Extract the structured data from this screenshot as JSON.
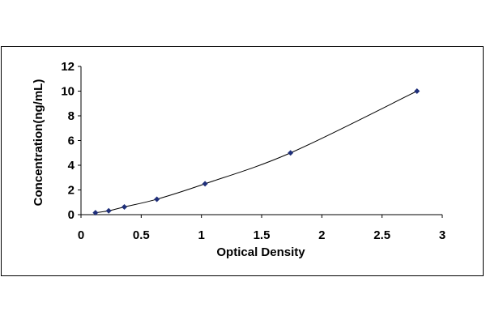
{
  "chart_data": {
    "type": "scatter",
    "title": "",
    "xlabel": "Optical Density",
    "ylabel": "Concentration(ng/mL)",
    "xlim": [
      0,
      3
    ],
    "ylim": [
      0,
      12
    ],
    "xticks": [
      0,
      0.5,
      1,
      1.5,
      2,
      2.5,
      3
    ],
    "xtick_labels": [
      "0",
      "0.5",
      "1",
      "1.5",
      "2",
      "2.5",
      "3"
    ],
    "yticks": [
      0,
      2,
      4,
      6,
      8,
      10,
      12
    ],
    "ytick_labels": [
      "0",
      "2",
      "4",
      "6",
      "8",
      "10",
      "12"
    ],
    "grid": false,
    "legend": false,
    "series": [
      {
        "x": [
          0.12,
          0.23,
          0.36,
          0.63,
          1.03,
          1.74,
          2.79
        ],
        "y": [
          0.156,
          0.312,
          0.625,
          1.25,
          2.5,
          5,
          10
        ],
        "marker": "diamond",
        "color": "#1f2f7a",
        "trendline": "smooth"
      }
    ],
    "line_color": "#000000"
  }
}
